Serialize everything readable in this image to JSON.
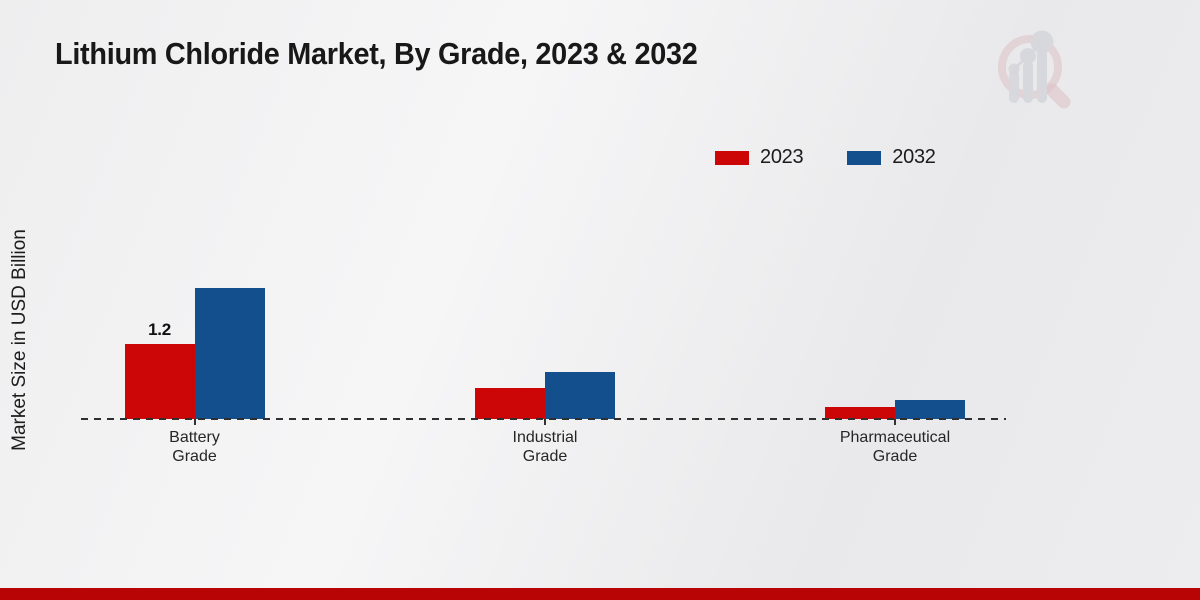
{
  "chart_data": {
    "type": "bar",
    "title": "Lithium Chloride Market, By Grade, 2023 & 2032",
    "xlabel": "",
    "ylabel": "Market Size in USD Billion",
    "categories": [
      "Battery Grade",
      "Industrial Grade",
      "Pharmaceutical Grade"
    ],
    "series": [
      {
        "name": "2023",
        "color": "#cc0606",
        "values": [
          1.2,
          0.5,
          0.2
        ],
        "value_labels": [
          "1.2",
          "",
          ""
        ]
      },
      {
        "name": "2032",
        "color": "#134f8c",
        "values": [
          2.1,
          0.75,
          0.3
        ],
        "value_labels": [
          "",
          "",
          ""
        ]
      }
    ],
    "ylim": [
      0,
      2.4
    ],
    "grid": false,
    "legend_position": "top-right",
    "baseline_style": "dashed",
    "baseline_color": "#2f2f2f"
  },
  "branding": {
    "logo_name": "market-research-future-watermark",
    "footer_bar_color": "#b80404"
  }
}
